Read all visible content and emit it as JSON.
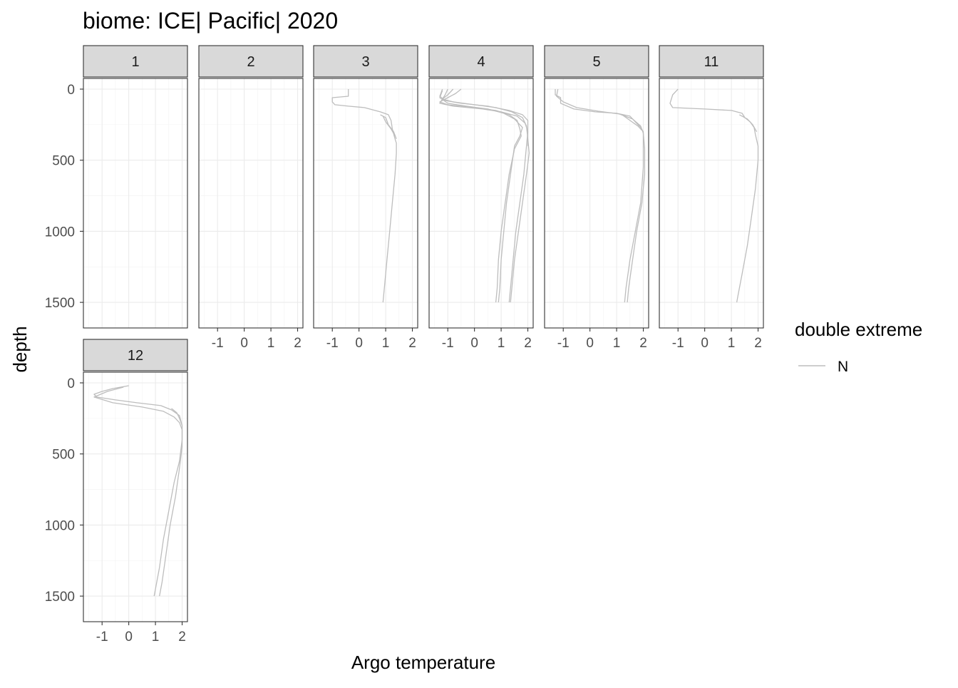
{
  "chart_data": {
    "type": "line",
    "title": "biome: ICE| Pacific| 2020",
    "xlabel": "Argo temperature",
    "ylabel": "depth",
    "xlim": [
      -1.7,
      2.2
    ],
    "ylim": [
      0,
      1680
    ],
    "y_reversed": true,
    "grid": true,
    "x_ticks": [
      "-1",
      "0",
      "1",
      "2"
    ],
    "y_ticks": [
      "0",
      "500",
      "1000",
      "1500"
    ],
    "legend": {
      "title": "double extreme",
      "position": "right",
      "entries": [
        {
          "label": "N",
          "color": "#bdbdbd"
        }
      ]
    },
    "facets": [
      {
        "label": "1",
        "series": []
      },
      {
        "label": "2",
        "series": []
      },
      {
        "label": "3",
        "series": [
          {
            "name": "N",
            "points": [
              [
                -0.4,
                0
              ],
              [
                -0.4,
                50
              ],
              [
                -1.0,
                60
              ],
              [
                -1.0,
                90
              ],
              [
                -0.9,
                110
              ],
              [
                -0.4,
                120
              ],
              [
                0.2,
                130
              ],
              [
                0.8,
                160
              ],
              [
                1.1,
                180
              ],
              [
                1.2,
                220
              ],
              [
                1.25,
                280
              ],
              [
                1.35,
                350
              ],
              [
                1.4,
                380
              ],
              [
                1.4,
                450
              ],
              [
                1.35,
                600
              ],
              [
                1.25,
                800
              ],
              [
                1.15,
                1000
              ],
              [
                1.05,
                1200
              ],
              [
                0.95,
                1400
              ],
              [
                0.9,
                1500
              ]
            ]
          },
          {
            "name": "N",
            "points": [
              [
                0.8,
                180
              ],
              [
                1.0,
                200
              ],
              [
                1.1,
                250
              ],
              [
                1.3,
                300
              ],
              [
                1.4,
                350
              ]
            ]
          },
          {
            "name": "N",
            "points": [
              [
                0.9,
                190
              ],
              [
                1.0,
                230
              ],
              [
                1.2,
                280
              ],
              [
                1.35,
                330
              ]
            ]
          }
        ]
      },
      {
        "label": "4",
        "series": [
          {
            "name": "N",
            "points": [
              [
                -1.2,
                0
              ],
              [
                -1.3,
                50
              ],
              [
                -1.1,
                80
              ],
              [
                -0.5,
                100
              ],
              [
                0.5,
                120
              ],
              [
                1.3,
                150
              ],
              [
                1.8,
                180
              ],
              [
                2.0,
                220
              ],
              [
                2.0,
                300
              ],
              [
                1.95,
                400
              ],
              [
                1.85,
                600
              ],
              [
                1.7,
                800
              ],
              [
                1.55,
                1000
              ],
              [
                1.45,
                1200
              ],
              [
                1.35,
                1400
              ],
              [
                1.3,
                1500
              ]
            ]
          },
          {
            "name": "N",
            "points": [
              [
                -0.8,
                0
              ],
              [
                -1.0,
                40
              ],
              [
                -1.2,
                70
              ],
              [
                -0.8,
                90
              ],
              [
                0.0,
                110
              ],
              [
                0.8,
                130
              ],
              [
                1.4,
                160
              ],
              [
                1.8,
                200
              ],
              [
                1.95,
                260
              ],
              [
                2.0,
                350
              ],
              [
                2.05,
                450
              ],
              [
                1.95,
                600
              ],
              [
                1.8,
                800
              ],
              [
                1.65,
                1000
              ],
              [
                1.5,
                1200
              ],
              [
                1.4,
                1400
              ],
              [
                1.35,
                1500
              ]
            ]
          },
          {
            "name": "N",
            "points": [
              [
                -0.5,
                0
              ],
              [
                -0.7,
                30
              ],
              [
                -1.0,
                60
              ],
              [
                -1.3,
                90
              ],
              [
                -1.0,
                110
              ],
              [
                0.0,
                130
              ],
              [
                0.8,
                150
              ],
              [
                1.3,
                180
              ],
              [
                1.6,
                220
              ],
              [
                1.7,
                280
              ],
              [
                1.75,
                330
              ],
              [
                1.5,
                420
              ],
              [
                1.3,
                600
              ],
              [
                1.15,
                800
              ],
              [
                1.0,
                1000
              ],
              [
                0.9,
                1200
              ],
              [
                0.85,
                1400
              ],
              [
                0.8,
                1500
              ]
            ]
          },
          {
            "name": "N",
            "points": [
              [
                -1.2,
                10
              ],
              [
                -1.3,
                60
              ],
              [
                -1.0,
                100
              ],
              [
                -0.3,
                120
              ],
              [
                0.5,
                140
              ],
              [
                1.1,
                170
              ],
              [
                1.5,
                210
              ],
              [
                1.8,
                270
              ],
              [
                1.7,
                330
              ],
              [
                1.5,
                400
              ],
              [
                1.35,
                600
              ],
              [
                1.2,
                800
              ],
              [
                1.1,
                1000
              ],
              [
                1.0,
                1200
              ],
              [
                0.95,
                1400
              ],
              [
                0.9,
                1500
              ]
            ]
          },
          {
            "name": "N",
            "points": [
              [
                -1.0,
                0
              ],
              [
                -1.1,
                40
              ],
              [
                -1.3,
                100
              ],
              [
                -0.8,
                120
              ],
              [
                0.3,
                140
              ],
              [
                1.0,
                160
              ],
              [
                1.6,
                190
              ],
              [
                1.9,
                240
              ],
              [
                2.0,
                300
              ],
              [
                2.0,
                400
              ]
            ]
          }
        ]
      },
      {
        "label": "5",
        "series": [
          {
            "name": "N",
            "points": [
              [
                -1.3,
                0
              ],
              [
                -1.3,
                40
              ],
              [
                -1.1,
                60
              ],
              [
                -1.1,
                100
              ],
              [
                -0.6,
                140
              ],
              [
                0.2,
                160
              ],
              [
                1.0,
                170
              ],
              [
                1.5,
                190
              ],
              [
                1.7,
                230
              ],
              [
                1.9,
                270
              ],
              [
                2.0,
                300
              ],
              [
                2.0,
                400
              ],
              [
                2.0,
                550
              ],
              [
                1.9,
                800
              ],
              [
                1.7,
                1000
              ],
              [
                1.5,
                1200
              ],
              [
                1.35,
                1400
              ],
              [
                1.3,
                1500
              ]
            ]
          },
          {
            "name": "N",
            "points": [
              [
                -1.2,
                0
              ],
              [
                -1.25,
                50
              ],
              [
                -1.0,
                90
              ],
              [
                -0.5,
                130
              ],
              [
                0.3,
                155
              ],
              [
                1.1,
                175
              ],
              [
                1.6,
                210
              ],
              [
                1.9,
                260
              ],
              [
                2.0,
                310
              ],
              [
                2.05,
                420
              ],
              [
                2.05,
                600
              ],
              [
                1.95,
                800
              ],
              [
                1.75,
                1000
              ],
              [
                1.6,
                1200
              ],
              [
                1.45,
                1400
              ],
              [
                1.4,
                1500
              ]
            ]
          },
          {
            "name": "N",
            "points": [
              [
                1.2,
                180
              ],
              [
                1.5,
                220
              ],
              [
                1.8,
                260
              ],
              [
                1.95,
                290
              ]
            ]
          }
        ]
      },
      {
        "label": "11",
        "series": [
          {
            "name": "N",
            "points": [
              [
                -1.0,
                0
              ],
              [
                -1.2,
                40
              ],
              [
                -1.3,
                100
              ],
              [
                -1.2,
                130
              ],
              [
                0.0,
                140
              ],
              [
                1.0,
                150
              ],
              [
                1.4,
                170
              ],
              [
                1.5,
                200
              ],
              [
                1.7,
                230
              ],
              [
                1.85,
                270
              ],
              [
                1.9,
                320
              ],
              [
                2.0,
                400
              ],
              [
                2.0,
                500
              ],
              [
                1.9,
                700
              ],
              [
                1.75,
                900
              ],
              [
                1.6,
                1100
              ],
              [
                1.4,
                1300
              ],
              [
                1.25,
                1450
              ],
              [
                1.2,
                1500
              ]
            ]
          },
          {
            "name": "N",
            "points": [
              [
                1.3,
                180
              ],
              [
                1.6,
                210
              ],
              [
                1.8,
                250
              ],
              [
                1.95,
                300
              ]
            ]
          }
        ]
      },
      {
        "label": "12",
        "series": [
          {
            "name": "N",
            "points": [
              [
                0.0,
                20
              ],
              [
                -0.6,
                40
              ],
              [
                -1.0,
                60
              ],
              [
                -1.3,
                80
              ],
              [
                -1.2,
                100
              ],
              [
                -0.5,
                120
              ],
              [
                0.3,
                140
              ],
              [
                1.2,
                160
              ],
              [
                1.6,
                190
              ],
              [
                1.9,
                230
              ],
              [
                2.0,
                300
              ],
              [
                2.0,
                400
              ],
              [
                1.9,
                550
              ],
              [
                1.7,
                700
              ],
              [
                1.5,
                900
              ],
              [
                1.3,
                1100
              ],
              [
                1.15,
                1300
              ],
              [
                1.0,
                1450
              ],
              [
                0.95,
                1500
              ]
            ]
          },
          {
            "name": "N",
            "points": [
              [
                -0.2,
                30
              ],
              [
                -0.8,
                60
              ],
              [
                -1.3,
                100
              ],
              [
                -0.6,
                140
              ],
              [
                0.5,
                170
              ],
              [
                1.3,
                200
              ],
              [
                1.7,
                240
              ],
              [
                1.9,
                280
              ],
              [
                2.0,
                330
              ],
              [
                2.0,
                450
              ],
              [
                1.9,
                600
              ],
              [
                1.75,
                800
              ],
              [
                1.55,
                1000
              ],
              [
                1.4,
                1200
              ],
              [
                1.25,
                1400
              ],
              [
                1.15,
                1500
              ]
            ]
          },
          {
            "name": "N",
            "points": [
              [
                1.6,
                180
              ],
              [
                1.8,
                210
              ],
              [
                1.9,
                250
              ],
              [
                2.0,
                300
              ]
            ]
          }
        ]
      }
    ]
  }
}
